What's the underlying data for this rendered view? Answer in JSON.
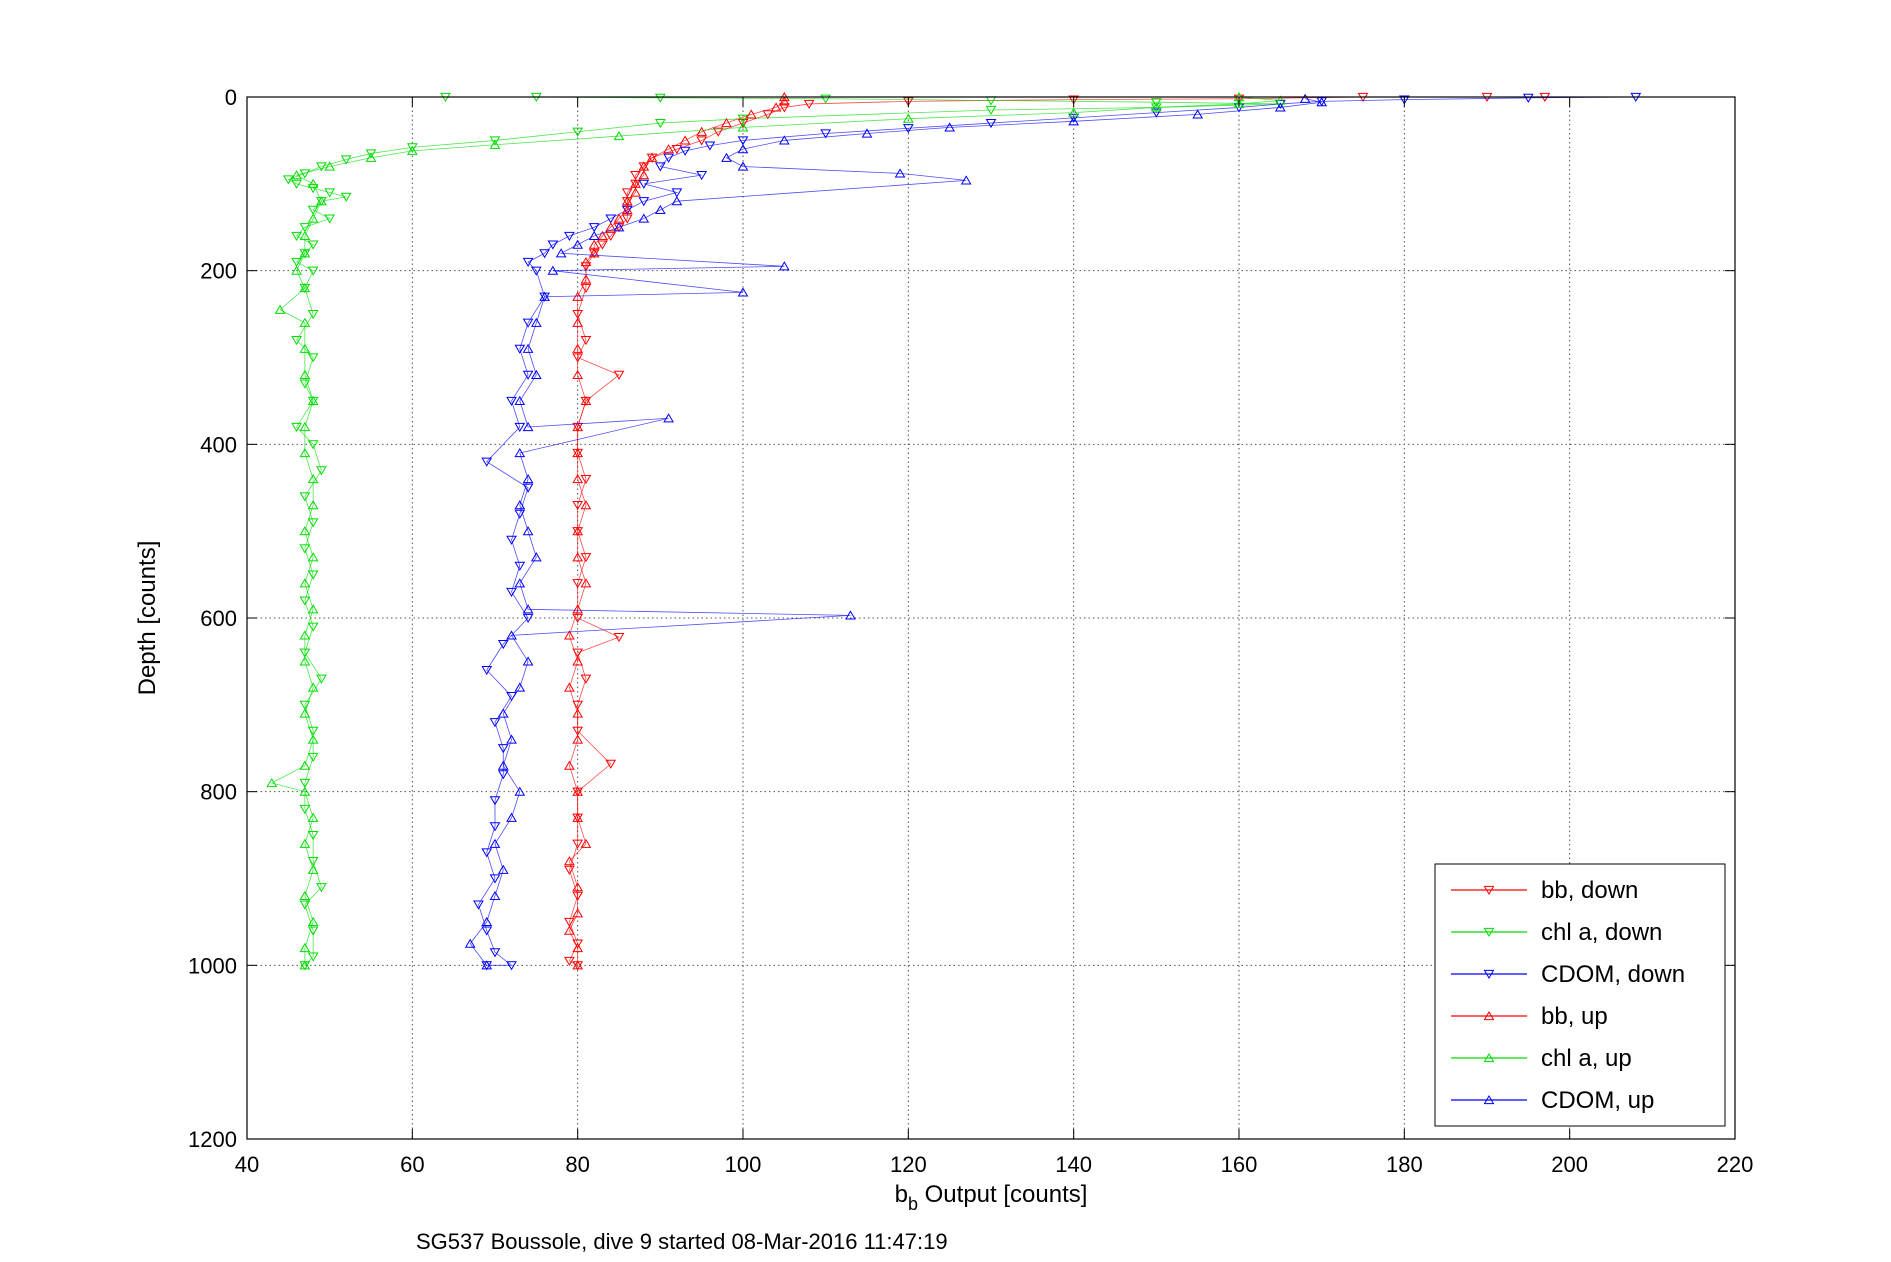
{
  "chart_data": {
    "type": "scatter",
    "title": "",
    "xlabel_main": "b",
    "xlabel_sub": "b",
    "xlabel_rest": " Output [counts]",
    "ylabel": "Depth [counts]",
    "caption": "SG537 Boussole, dive 9 started 08-Mar-2016 11:47:19",
    "xlim": [
      40,
      220
    ],
    "ylim": [
      0,
      1200
    ],
    "y_reversed": true,
    "xticks": [
      "40",
      "60",
      "80",
      "100",
      "120",
      "140",
      "160",
      "180",
      "200",
      "220"
    ],
    "yticks": [
      "0",
      "200",
      "400",
      "600",
      "800",
      "1000",
      "1200"
    ],
    "grid": true,
    "legend_position": "bottom-right",
    "series": [
      {
        "name": "bb, down",
        "color": "#ff0000",
        "marker": "triangle-down",
        "points": [
          [
            197,
            0
          ],
          [
            190,
            0
          ],
          [
            175,
            0
          ],
          [
            160,
            2
          ],
          [
            140,
            3
          ],
          [
            120,
            5
          ],
          [
            108,
            8
          ],
          [
            105,
            12
          ],
          [
            103,
            20
          ],
          [
            100,
            30
          ],
          [
            97,
            40
          ],
          [
            95,
            50
          ],
          [
            92,
            60
          ],
          [
            89,
            70
          ],
          [
            88,
            80
          ],
          [
            87,
            90
          ],
          [
            87,
            100
          ],
          [
            86,
            110
          ],
          [
            86,
            120
          ],
          [
            86,
            130
          ],
          [
            86,
            140
          ],
          [
            85,
            150
          ],
          [
            84,
            160
          ],
          [
            83,
            170
          ],
          [
            82,
            180
          ],
          [
            81,
            195
          ],
          [
            81,
            220
          ],
          [
            80,
            250
          ],
          [
            81,
            280
          ],
          [
            80,
            300
          ],
          [
            85,
            320
          ],
          [
            81,
            350
          ],
          [
            80,
            380
          ],
          [
            80,
            410
          ],
          [
            81,
            440
          ],
          [
            80,
            470
          ],
          [
            80,
            500
          ],
          [
            81,
            530
          ],
          [
            80,
            560
          ],
          [
            80,
            600
          ],
          [
            85,
            622
          ],
          [
            80,
            640
          ],
          [
            81,
            670
          ],
          [
            80,
            700
          ],
          [
            80,
            730
          ],
          [
            84,
            768
          ],
          [
            80,
            800
          ],
          [
            80,
            830
          ],
          [
            80,
            860
          ],
          [
            79,
            890
          ],
          [
            80,
            920
          ],
          [
            79,
            950
          ],
          [
            80,
            975
          ],
          [
            79,
            995
          ],
          [
            80,
            1000
          ]
        ]
      },
      {
        "name": "chl a, down",
        "color": "#00dd00",
        "marker": "triangle-down",
        "points": [
          [
            64,
            0
          ],
          [
            75,
            0
          ],
          [
            90,
            1
          ],
          [
            110,
            2
          ],
          [
            130,
            4
          ],
          [
            150,
            6
          ],
          [
            165,
            8
          ],
          [
            150,
            12
          ],
          [
            130,
            15
          ],
          [
            100,
            25
          ],
          [
            90,
            30
          ],
          [
            80,
            40
          ],
          [
            70,
            50
          ],
          [
            60,
            58
          ],
          [
            55,
            65
          ],
          [
            52,
            72
          ],
          [
            49,
            80
          ],
          [
            47,
            88
          ],
          [
            45,
            95
          ],
          [
            46,
            100
          ],
          [
            48,
            105
          ],
          [
            50,
            110
          ],
          [
            52,
            115
          ],
          [
            49,
            120
          ],
          [
            48,
            130
          ],
          [
            50,
            140
          ],
          [
            47,
            150
          ],
          [
            46,
            160
          ],
          [
            48,
            170
          ],
          [
            47,
            180
          ],
          [
            46,
            190
          ],
          [
            48,
            200
          ],
          [
            47,
            220
          ],
          [
            48,
            250
          ],
          [
            46,
            280
          ],
          [
            48,
            300
          ],
          [
            47,
            330
          ],
          [
            48,
            350
          ],
          [
            46,
            380
          ],
          [
            48,
            400
          ],
          [
            49,
            430
          ],
          [
            47,
            460
          ],
          [
            48,
            490
          ],
          [
            47,
            520
          ],
          [
            48,
            550
          ],
          [
            47,
            580
          ],
          [
            48,
            610
          ],
          [
            47,
            640
          ],
          [
            49,
            670
          ],
          [
            47,
            700
          ],
          [
            48,
            730
          ],
          [
            48,
            760
          ],
          [
            47,
            790
          ],
          [
            47,
            820
          ],
          [
            48,
            850
          ],
          [
            48,
            880
          ],
          [
            49,
            910
          ],
          [
            47,
            930
          ],
          [
            48,
            960
          ],
          [
            48,
            990
          ],
          [
            47,
            1000
          ]
        ]
      },
      {
        "name": "CDOM, down",
        "color": "#0000ff",
        "marker": "triangle-down",
        "points": [
          [
            208,
            0
          ],
          [
            195,
            1
          ],
          [
            180,
            3
          ],
          [
            170,
            5
          ],
          [
            165,
            8
          ],
          [
            160,
            12
          ],
          [
            150,
            18
          ],
          [
            140,
            24
          ],
          [
            130,
            30
          ],
          [
            120,
            36
          ],
          [
            110,
            42
          ],
          [
            100,
            50
          ],
          [
            96,
            56
          ],
          [
            93,
            62
          ],
          [
            91,
            70
          ],
          [
            90,
            80
          ],
          [
            95,
            90
          ],
          [
            88,
            100
          ],
          [
            92,
            110
          ],
          [
            88,
            120
          ],
          [
            86,
            130
          ],
          [
            84,
            140
          ],
          [
            82,
            150
          ],
          [
            79,
            160
          ],
          [
            77,
            170
          ],
          [
            76,
            180
          ],
          [
            74,
            190
          ],
          [
            75,
            200
          ],
          [
            76,
            230
          ],
          [
            74,
            260
          ],
          [
            73,
            290
          ],
          [
            74,
            320
          ],
          [
            72,
            350
          ],
          [
            73,
            380
          ],
          [
            69,
            420
          ],
          [
            74,
            450
          ],
          [
            73,
            480
          ],
          [
            72,
            510
          ],
          [
            73,
            540
          ],
          [
            72,
            570
          ],
          [
            74,
            600
          ],
          [
            71,
            630
          ],
          [
            69,
            660
          ],
          [
            72,
            690
          ],
          [
            70,
            720
          ],
          [
            71,
            750
          ],
          [
            71,
            780
          ],
          [
            70,
            810
          ],
          [
            70,
            840
          ],
          [
            69,
            870
          ],
          [
            70,
            900
          ],
          [
            68,
            930
          ],
          [
            69,
            960
          ],
          [
            70,
            985
          ],
          [
            72,
            1000
          ],
          [
            69,
            1000
          ]
        ]
      },
      {
        "name": "bb, up",
        "color": "#ff0000",
        "marker": "triangle-up",
        "points": [
          [
            80,
            1000
          ],
          [
            80,
            980
          ],
          [
            79,
            960
          ],
          [
            80,
            940
          ],
          [
            80,
            910
          ],
          [
            79,
            880
          ],
          [
            81,
            860
          ],
          [
            80,
            830
          ],
          [
            80,
            800
          ],
          [
            79,
            770
          ],
          [
            80,
            740
          ],
          [
            80,
            710
          ],
          [
            79,
            680
          ],
          [
            80,
            650
          ],
          [
            79,
            620
          ],
          [
            80,
            590
          ],
          [
            81,
            560
          ],
          [
            80,
            530
          ],
          [
            80,
            500
          ],
          [
            81,
            470
          ],
          [
            80,
            440
          ],
          [
            80,
            410
          ],
          [
            80,
            380
          ],
          [
            81,
            350
          ],
          [
            80,
            320
          ],
          [
            80,
            290
          ],
          [
            80,
            260
          ],
          [
            80,
            230
          ],
          [
            81,
            210
          ],
          [
            81,
            190
          ],
          [
            82,
            180
          ],
          [
            82,
            170
          ],
          [
            83,
            160
          ],
          [
            84,
            150
          ],
          [
            85,
            140
          ],
          [
            86,
            130
          ],
          [
            86,
            120
          ],
          [
            87,
            110
          ],
          [
            87,
            100
          ],
          [
            88,
            90
          ],
          [
            88,
            80
          ],
          [
            89,
            70
          ],
          [
            91,
            60
          ],
          [
            93,
            50
          ],
          [
            95,
            40
          ],
          [
            98,
            30
          ],
          [
            101,
            20
          ],
          [
            104,
            12
          ],
          [
            105,
            5
          ],
          [
            105,
            0
          ]
        ]
      },
      {
        "name": "chl a, up",
        "color": "#00dd00",
        "marker": "triangle-up",
        "points": [
          [
            47,
            1000
          ],
          [
            47,
            980
          ],
          [
            48,
            950
          ],
          [
            47,
            920
          ],
          [
            48,
            890
          ],
          [
            47,
            860
          ],
          [
            48,
            830
          ],
          [
            47,
            800
          ],
          [
            43,
            790
          ],
          [
            47,
            770
          ],
          [
            48,
            740
          ],
          [
            47,
            710
          ],
          [
            48,
            680
          ],
          [
            47,
            650
          ],
          [
            47,
            620
          ],
          [
            48,
            590
          ],
          [
            47,
            560
          ],
          [
            48,
            530
          ],
          [
            47,
            500
          ],
          [
            48,
            470
          ],
          [
            48,
            440
          ],
          [
            47,
            410
          ],
          [
            47,
            380
          ],
          [
            48,
            350
          ],
          [
            47,
            320
          ],
          [
            47,
            290
          ],
          [
            47,
            260
          ],
          [
            44,
            245
          ],
          [
            47,
            220
          ],
          [
            46,
            200
          ],
          [
            47,
            180
          ],
          [
            47,
            160
          ],
          [
            48,
            140
          ],
          [
            49,
            120
          ],
          [
            48,
            100
          ],
          [
            46,
            90
          ],
          [
            50,
            80
          ],
          [
            55,
            70
          ],
          [
            60,
            62
          ],
          [
            70,
            55
          ],
          [
            85,
            45
          ],
          [
            100,
            35
          ],
          [
            120,
            25
          ],
          [
            140,
            18
          ],
          [
            150,
            12
          ],
          [
            160,
            8
          ],
          [
            165,
            4
          ],
          [
            160,
            0
          ]
        ]
      },
      {
        "name": "CDOM, up",
        "color": "#0000ff",
        "marker": "triangle-up",
        "points": [
          [
            69,
            1000
          ],
          [
            67,
            975
          ],
          [
            69,
            950
          ],
          [
            70,
            920
          ],
          [
            71,
            890
          ],
          [
            70,
            860
          ],
          [
            72,
            830
          ],
          [
            73,
            800
          ],
          [
            71,
            770
          ],
          [
            72,
            740
          ],
          [
            71,
            710
          ],
          [
            73,
            680
          ],
          [
            74,
            650
          ],
          [
            72,
            620
          ],
          [
            113,
            597
          ],
          [
            74,
            590
          ],
          [
            73,
            560
          ],
          [
            75,
            530
          ],
          [
            74,
            500
          ],
          [
            73,
            470
          ],
          [
            74,
            440
          ],
          [
            73,
            410
          ],
          [
            91,
            370
          ],
          [
            74,
            380
          ],
          [
            73,
            350
          ],
          [
            75,
            320
          ],
          [
            74,
            290
          ],
          [
            75,
            260
          ],
          [
            76,
            230
          ],
          [
            100,
            225
          ],
          [
            77,
            200
          ],
          [
            105,
            195
          ],
          [
            78,
            180
          ],
          [
            80,
            170
          ],
          [
            82,
            160
          ],
          [
            85,
            150
          ],
          [
            88,
            140
          ],
          [
            90,
            130
          ],
          [
            92,
            120
          ],
          [
            127,
            96
          ],
          [
            119,
            88
          ],
          [
            100,
            80
          ],
          [
            98,
            70
          ],
          [
            100,
            60
          ],
          [
            105,
            50
          ],
          [
            115,
            42
          ],
          [
            125,
            35
          ],
          [
            140,
            28
          ],
          [
            155,
            20
          ],
          [
            165,
            12
          ],
          [
            170,
            6
          ],
          [
            168,
            2
          ]
        ]
      }
    ]
  }
}
